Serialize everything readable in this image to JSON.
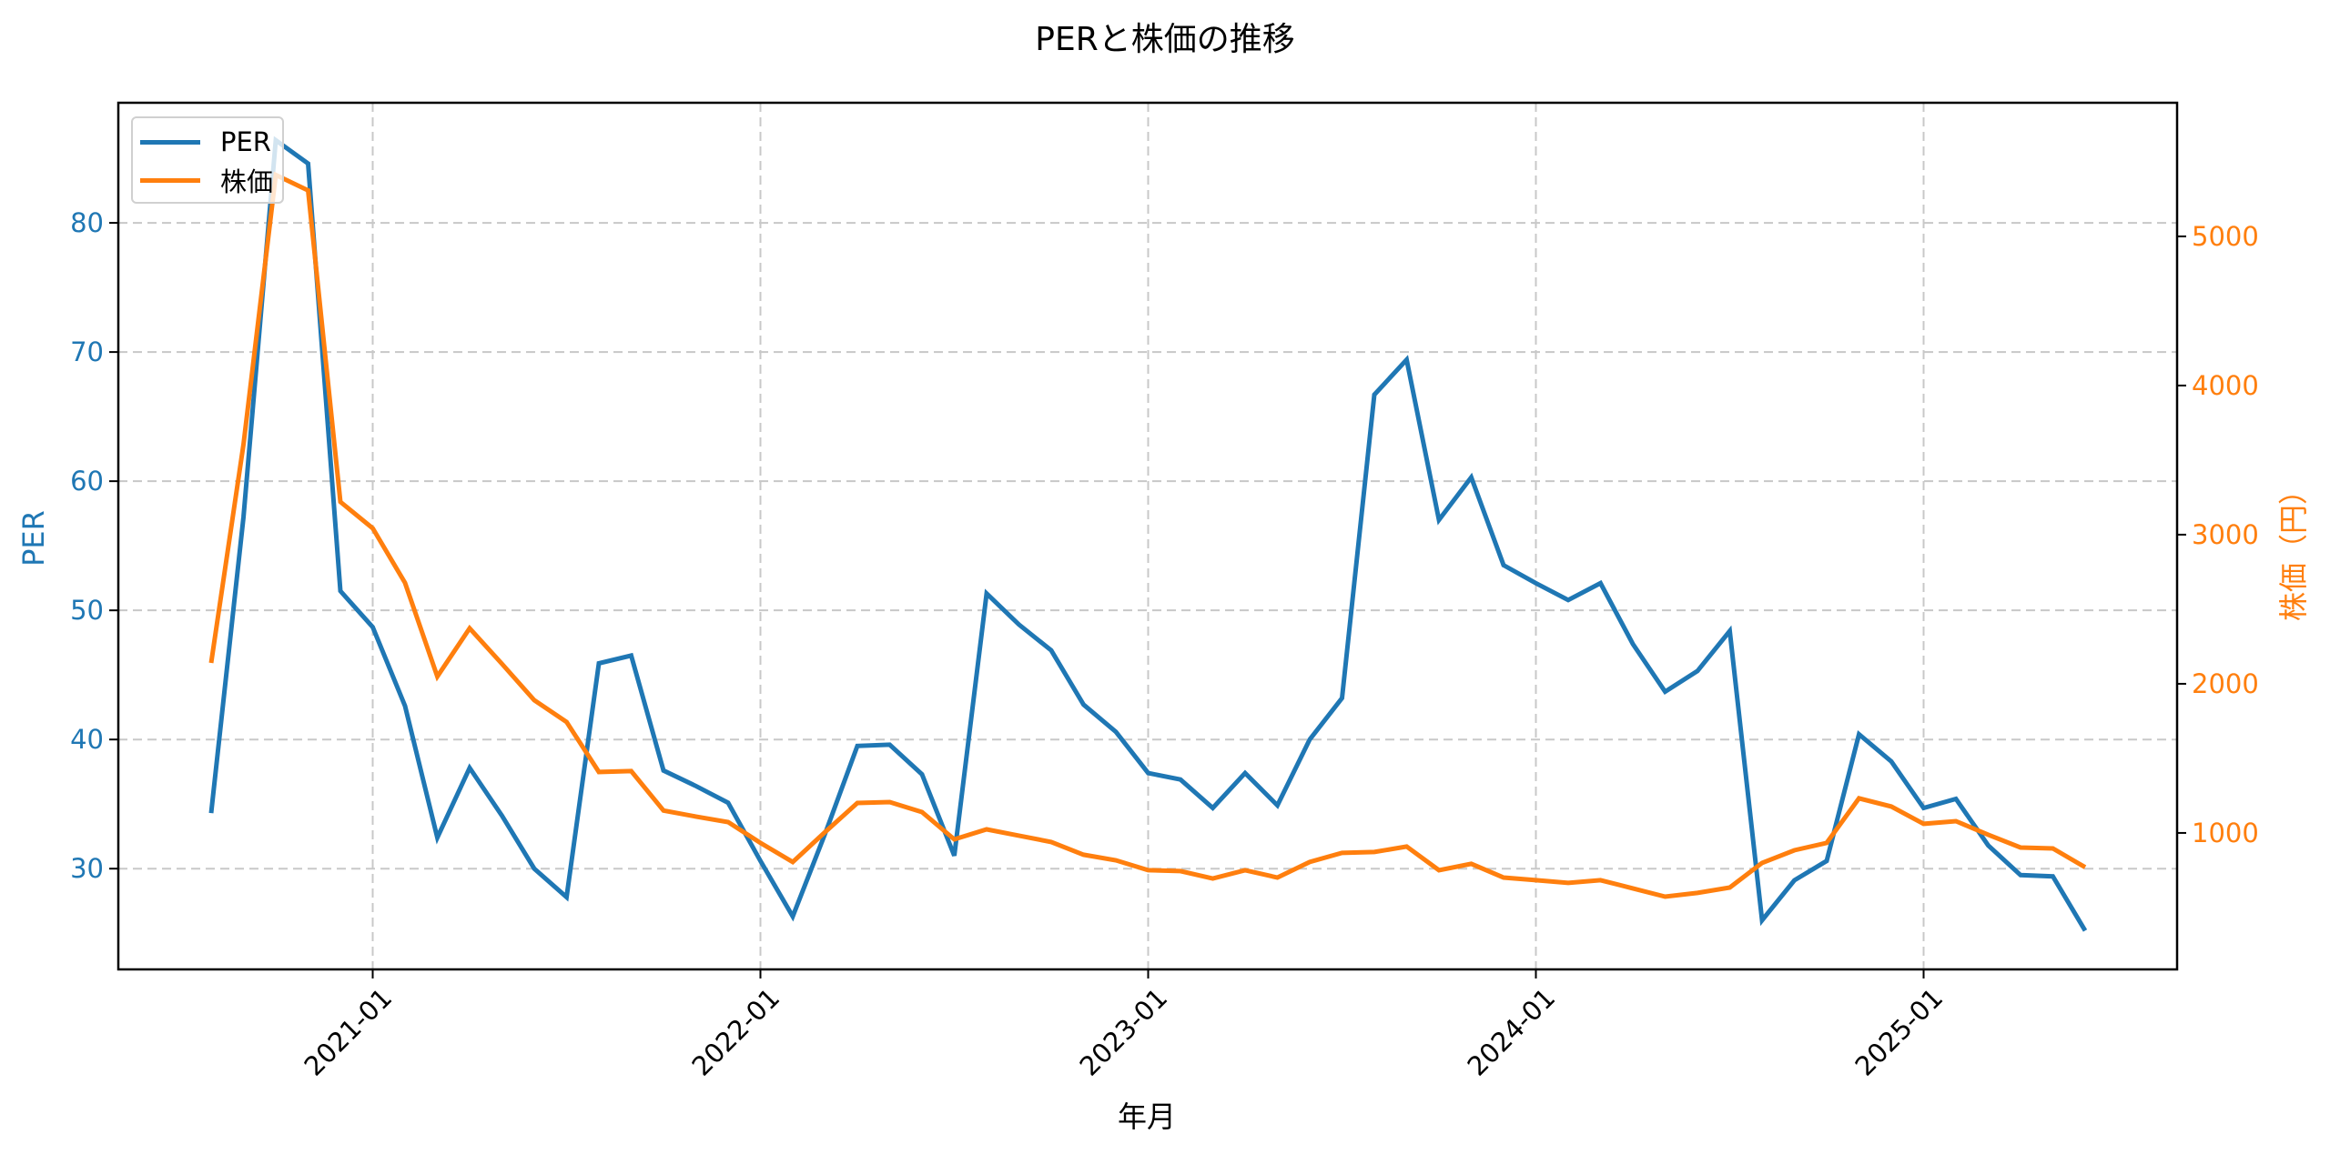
{
  "chart_data": {
    "type": "line",
    "title": "PERと株価の推移",
    "xlabel": "年月",
    "ylabel": "PER",
    "ylabel_right": "株価（円）",
    "x_start": "2020-08",
    "x_end": "2025-06",
    "x_frequency": "monthly",
    "x_ticks": [
      "2021-01",
      "2022-01",
      "2023-01",
      "2024-01",
      "2025-01"
    ],
    "y_ticks_left": [
      30,
      40,
      50,
      60,
      70,
      80
    ],
    "y_ticks_right": [
      1000,
      2000,
      3000,
      4000,
      5000
    ],
    "ylim_left": [
      22.2,
      89.3
    ],
    "ylim_right": [
      85,
      5896
    ],
    "grid": true,
    "grid_style": "dashed",
    "legend_position": "upper left",
    "x": [
      "2020-08",
      "2020-09",
      "2020-10",
      "2020-11",
      "2020-12",
      "2021-01",
      "2021-02",
      "2021-03",
      "2021-04",
      "2021-05",
      "2021-06",
      "2021-07",
      "2021-08",
      "2021-09",
      "2021-10",
      "2021-11",
      "2021-12",
      "2022-01",
      "2022-02",
      "2022-03",
      "2022-04",
      "2022-05",
      "2022-06",
      "2022-07",
      "2022-08",
      "2022-09",
      "2022-10",
      "2022-11",
      "2022-12",
      "2023-01",
      "2023-02",
      "2023-03",
      "2023-04",
      "2023-05",
      "2023-06",
      "2023-07",
      "2023-08",
      "2023-09",
      "2023-10",
      "2023-11",
      "2023-12",
      "2024-01",
      "2024-02",
      "2024-03",
      "2024-04",
      "2024-05",
      "2024-06",
      "2024-07",
      "2024-08",
      "2024-09",
      "2024-10",
      "2024-11",
      "2024-12",
      "2025-01",
      "2025-02",
      "2025-03",
      "2025-04",
      "2025-05",
      "2025-06"
    ],
    "series": [
      {
        "name": "PER",
        "axis": "left",
        "color": "#1f77b4",
        "values": [
          34.3,
          57.2,
          86.4,
          84.6,
          51.5,
          48.7,
          42.6,
          32.4,
          37.8,
          34.1,
          30.0,
          27.8,
          45.9,
          46.5,
          37.6,
          36.4,
          35.1,
          30.6,
          26.3,
          32.7,
          39.5,
          39.6,
          37.3,
          31.0,
          51.3,
          48.9,
          46.9,
          42.7,
          40.6,
          37.4,
          36.9,
          34.7,
          37.4,
          34.9,
          40.0,
          43.2,
          66.7,
          69.4,
          57.0,
          60.3,
          53.5,
          52.1,
          50.8,
          52.1,
          47.4,
          43.7,
          45.3,
          48.4,
          26.0,
          29.1,
          30.6,
          40.4,
          38.3,
          34.7,
          35.4,
          31.8,
          29.5,
          29.4,
          25.2
        ]
      },
      {
        "name": "株価",
        "axis": "right",
        "color": "#ff7f0e",
        "values": [
          2140,
          3604,
          5412,
          5308,
          3220,
          3043,
          2677,
          2049,
          2372,
          2134,
          1890,
          1744,
          1409,
          1415,
          1150,
          1110,
          1073,
          933,
          805,
          1006,
          1201,
          1207,
          1140,
          957,
          1024,
          982,
          939,
          854,
          817,
          750,
          744,
          695,
          750,
          701,
          805,
          866,
          872,
          909,
          750,
          793,
          701,
          683,
          665,
          683,
          628,
          573,
          598,
          634,
          799,
          884,
          933,
          1232,
          1177,
          1061,
          1079,
          988,
          902,
          896,
          770
        ]
      }
    ]
  },
  "legend": {
    "items": [
      {
        "label": "PER",
        "color": "#1f77b4"
      },
      {
        "label": "株価",
        "color": "#ff7f0e"
      }
    ]
  }
}
